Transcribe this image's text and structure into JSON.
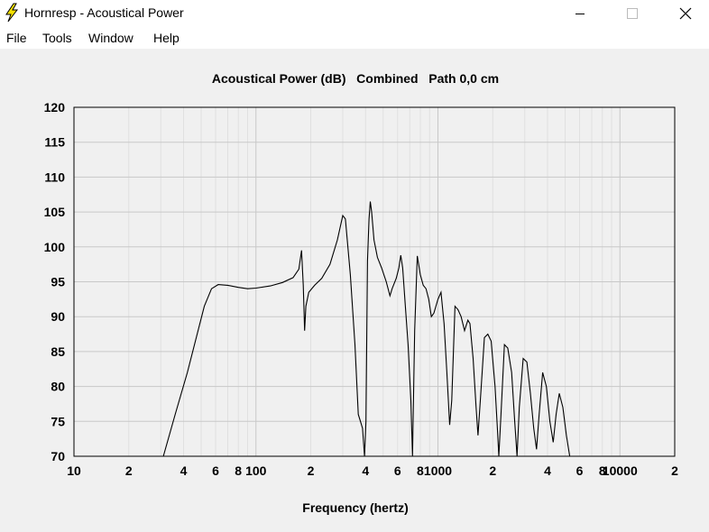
{
  "window": {
    "title": "Hornresp - Acoustical Power",
    "minimize_icon": "minimize-icon",
    "maximize_icon": "maximize-icon",
    "close_icon": "close-icon"
  },
  "menu": {
    "items": [
      {
        "label": "File"
      },
      {
        "label": "Tools"
      },
      {
        "label": "Window"
      },
      {
        "label": "Help"
      }
    ]
  },
  "chart_data": {
    "type": "line",
    "title": "Acoustical Power (dB)   Combined   Path 0,0 cm",
    "xlabel": "Frequency (hertz)",
    "ylabel": "",
    "xscale": "log",
    "xlim": [
      10,
      20000
    ],
    "ylim": [
      70,
      120
    ],
    "yticks": [
      "70",
      "75",
      "80",
      "85",
      "90",
      "95",
      "100",
      "105",
      "110",
      "115",
      "120"
    ],
    "xtick_labels": [
      {
        "x": 10,
        "label": "10"
      },
      {
        "x": 20,
        "label": "2"
      },
      {
        "x": 40,
        "label": "4"
      },
      {
        "x": 60,
        "label": "6"
      },
      {
        "x": 80,
        "label": "8"
      },
      {
        "x": 100,
        "label": "100"
      },
      {
        "x": 200,
        "label": "2"
      },
      {
        "x": 400,
        "label": "4"
      },
      {
        "x": 600,
        "label": "6"
      },
      {
        "x": 800,
        "label": "8"
      },
      {
        "x": 1000,
        "label": "1000"
      },
      {
        "x": 2000,
        "label": "2"
      },
      {
        "x": 4000,
        "label": "4"
      },
      {
        "x": 6000,
        "label": "6"
      },
      {
        "x": 8000,
        "label": "8"
      },
      {
        "x": 10000,
        "label": "10000"
      },
      {
        "x": 20000,
        "label": "2"
      }
    ],
    "grid": true,
    "series": [
      {
        "color": "#000000",
        "points": [
          [
            31,
            70
          ],
          [
            36,
            76
          ],
          [
            42,
            82
          ],
          [
            47,
            87
          ],
          [
            52,
            91.5
          ],
          [
            57,
            94
          ],
          [
            62,
            94.6
          ],
          [
            70,
            94.5
          ],
          [
            80,
            94.2
          ],
          [
            90,
            94.0
          ],
          [
            100,
            94.1
          ],
          [
            120,
            94.4
          ],
          [
            140,
            94.9
          ],
          [
            160,
            95.6
          ],
          [
            172,
            96.8
          ],
          [
            178,
            99.5
          ],
          [
            182,
            94.5
          ],
          [
            185,
            88
          ],
          [
            188,
            91.5
          ],
          [
            195,
            93.5
          ],
          [
            210,
            94.5
          ],
          [
            230,
            95.5
          ],
          [
            255,
            97.5
          ],
          [
            280,
            101
          ],
          [
            300,
            104.5
          ],
          [
            310,
            104
          ],
          [
            330,
            96
          ],
          [
            350,
            86
          ],
          [
            365,
            76
          ],
          [
            375,
            75
          ],
          [
            385,
            74
          ],
          [
            395,
            70
          ],
          [
            402,
            75
          ],
          [
            410,
            98
          ],
          [
            418,
            104
          ],
          [
            425,
            106.5
          ],
          [
            432,
            105
          ],
          [
            445,
            101
          ],
          [
            465,
            98.5
          ],
          [
            490,
            97
          ],
          [
            520,
            95
          ],
          [
            545,
            93
          ],
          [
            560,
            94
          ],
          [
            590,
            95.5
          ],
          [
            610,
            97
          ],
          [
            625,
            98.8
          ],
          [
            640,
            97
          ],
          [
            660,
            92
          ],
          [
            685,
            86
          ],
          [
            710,
            78
          ],
          [
            725,
            70
          ],
          [
            745,
            88
          ],
          [
            770,
            98.7
          ],
          [
            800,
            96
          ],
          [
            830,
            94.5
          ],
          [
            860,
            94
          ],
          [
            890,
            92.5
          ],
          [
            920,
            90
          ],
          [
            950,
            90.5
          ],
          [
            1000,
            92.5
          ],
          [
            1040,
            93.5
          ],
          [
            1080,
            89
          ],
          [
            1120,
            82
          ],
          [
            1160,
            74.5
          ],
          [
            1190,
            78
          ],
          [
            1240,
            91.5
          ],
          [
            1290,
            91
          ],
          [
            1340,
            90
          ],
          [
            1400,
            88
          ],
          [
            1460,
            89.5
          ],
          [
            1500,
            89
          ],
          [
            1560,
            84
          ],
          [
            1620,
            77
          ],
          [
            1660,
            73
          ],
          [
            1720,
            79
          ],
          [
            1800,
            87
          ],
          [
            1880,
            87.5
          ],
          [
            1960,
            86.5
          ],
          [
            2060,
            80
          ],
          [
            2120,
            74
          ],
          [
            2160,
            70
          ],
          [
            2220,
            76
          ],
          [
            2320,
            86
          ],
          [
            2420,
            85.5
          ],
          [
            2540,
            82
          ],
          [
            2640,
            75
          ],
          [
            2720,
            70
          ],
          [
            2800,
            77
          ],
          [
            2940,
            84
          ],
          [
            3080,
            83.5
          ],
          [
            3220,
            79
          ],
          [
            3360,
            74
          ],
          [
            3480,
            71
          ],
          [
            3600,
            76
          ],
          [
            3760,
            82
          ],
          [
            3940,
            80
          ],
          [
            4120,
            75
          ],
          [
            4300,
            72
          ],
          [
            4460,
            76
          ],
          [
            4640,
            79
          ],
          [
            4860,
            77
          ],
          [
            5080,
            73
          ],
          [
            5300,
            70
          ]
        ]
      }
    ]
  }
}
